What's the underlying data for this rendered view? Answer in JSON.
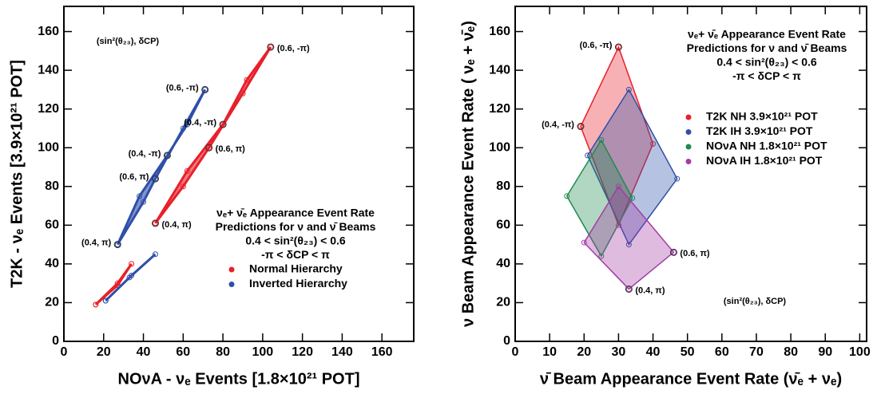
{
  "chart_data": [
    {
      "type": "line",
      "xlabel": "NOνA - νₑ Events [1.8×10²¹ POT]",
      "ylabel": "T2K - νₑ Events [3.9×10²¹ POT]",
      "xlim": [
        0,
        176
      ],
      "ylim": [
        0,
        173
      ],
      "xticks": [
        0,
        20,
        40,
        60,
        80,
        100,
        120,
        140,
        160
      ],
      "yticks": [
        0,
        20,
        40,
        60,
        80,
        100,
        120,
        140,
        160
      ],
      "series": [
        {
          "name": "Normal Hierarchy",
          "color": "#e8202a",
          "x": [
            46,
            60,
            73,
            90,
            104,
            92,
            80,
            62,
            46,
            null,
            16,
            27,
            34,
            27,
            16
          ],
          "y": [
            61,
            80,
            100,
            128,
            152,
            135,
            112,
            88,
            61,
            null,
            19,
            29,
            40,
            30,
            19
          ]
        },
        {
          "name": "Inverted Hierarchy",
          "color": "#2f4fa8",
          "x": [
            27,
            40,
            46,
            60,
            71,
            62,
            52,
            38,
            27,
            null,
            21,
            33,
            46,
            34,
            21
          ],
          "y": [
            50,
            72,
            84,
            110,
            130,
            112,
            96,
            75,
            50,
            null,
            21,
            33,
            45,
            34,
            21
          ]
        }
      ],
      "annotations": [
        {
          "text": "(0.6, -π)",
          "x": 104,
          "y": 152
        },
        {
          "text": "(0.4, -π)",
          "x": 80,
          "y": 112
        },
        {
          "text": "(0.6, π)",
          "x": 73,
          "y": 100
        },
        {
          "text": "(0.4, π)",
          "x": 46,
          "y": 61
        },
        {
          "text": "(0.6, -π)",
          "x": 71,
          "y": 130
        },
        {
          "text": "(0.4, -π)",
          "x": 52,
          "y": 96
        },
        {
          "text": "(0.6, π)",
          "x": 46,
          "y": 84
        },
        {
          "text": "(0.4, π)",
          "x": 27,
          "y": 50
        }
      ],
      "legend_title": [
        "νₑ+ ν̄ₑ Appearance Event Rate",
        "Predictions for ν and ν̄ Beams",
        "0.4 < sin²(θ₂₃) < 0.6",
        "-π < δCP < π"
      ],
      "legend": "lower right",
      "note": "(sin²(θ₂₃), δCP)",
      "note_loc": "upper left"
    },
    {
      "type": "area",
      "xlabel": "ν̄ Beam Appearance Event Rate (ν̄ₑ + νₑ)",
      "ylabel": "ν Beam Appearance Event Rate ( νₑ + ν̄ₑ)",
      "xlim": [
        0,
        102
      ],
      "ylim": [
        0,
        173
      ],
      "xticks": [
        0,
        10,
        20,
        30,
        40,
        50,
        60,
        70,
        80,
        90,
        100
      ],
      "yticks": [
        0,
        20,
        40,
        60,
        80,
        100,
        120,
        140,
        160
      ],
      "series": [
        {
          "name": "T2K NH 3.9×10²¹ POT",
          "color": "#e8202a",
          "x": [
            30,
            40,
            30,
            19
          ],
          "y": [
            152,
            102,
            60,
            111
          ]
        },
        {
          "name": "T2K IH 3.9×10²¹ POT",
          "color": "#2f4fa8",
          "x": [
            33,
            47,
            33,
            21
          ],
          "y": [
            130,
            84,
            50,
            96
          ]
        },
        {
          "name": "NOνA NH 1.8×10²¹ POT",
          "color": "#1f8a4c",
          "x": [
            25,
            34,
            25,
            15
          ],
          "y": [
            104,
            74,
            44,
            75
          ]
        },
        {
          "name": "NOνA IH 1.8×10²¹ POT",
          "color": "#a23ca6",
          "x": [
            30,
            46,
            33,
            20
          ],
          "y": [
            80,
            46,
            27,
            51
          ]
        }
      ],
      "annotations": [
        {
          "text": "(0.6, -π)",
          "x": 30,
          "y": 152
        },
        {
          "text": "(0.4, -π)",
          "x": 19,
          "y": 111
        },
        {
          "text": "(0.6, π)",
          "x": 46,
          "y": 46
        },
        {
          "text": "(0.4, π)",
          "x": 33,
          "y": 27
        }
      ],
      "legend_title": [
        "νₑ+ ν̄ₑ Appearance Event Rate",
        "Predictions for ν and ν̄ Beams",
        "0.4 < sin²(θ₂₃) < 0.6",
        "-π < δCP < π"
      ],
      "legend": "upper right",
      "note": "(sin²(θ₂₃), δCP)",
      "note_loc": "lower right"
    }
  ]
}
